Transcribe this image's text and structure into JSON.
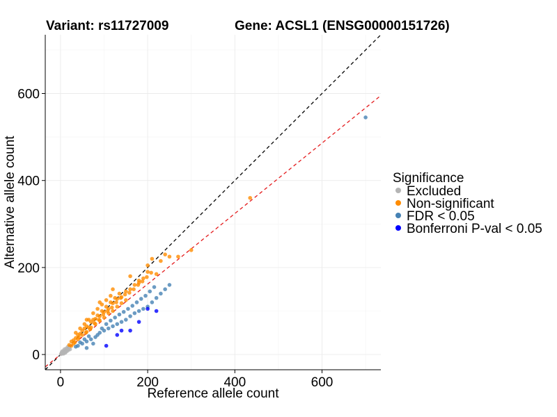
{
  "chart_data": {
    "type": "scatter",
    "title_left": "Variant: rs11727009",
    "title_right": "Gene: ACSL1 (ENSG00000151726)",
    "xlabel": "Reference allele count",
    "ylabel": "Alternative allele count",
    "xlim": [
      -35,
      735
    ],
    "ylim": [
      -35,
      735
    ],
    "xticks": [
      0,
      200,
      400,
      600
    ],
    "yticks": [
      0,
      200,
      400,
      600
    ],
    "grid": true,
    "legend": {
      "title": "Significance",
      "placement": "right",
      "entries": [
        {
          "label": "Excluded",
          "color": "#b4b4b4"
        },
        {
          "label": "Non-significant",
          "color": "#ff8c00"
        },
        {
          "label": "FDR < 0.05",
          "color": "#4682b4"
        },
        {
          "label": "Bonferroni P-val < 0.05",
          "color": "#0000ff"
        }
      ]
    },
    "reference_lines": [
      {
        "name": "identity",
        "slope": 1.0,
        "intercept": 0,
        "color": "#000000",
        "dash": "dashed"
      },
      {
        "name": "fit",
        "slope": 0.81,
        "intercept": 0,
        "color": "#e41a1c",
        "dash": "dashed"
      }
    ],
    "series": [
      {
        "name": "Excluded",
        "color": "#b4b4b4",
        "points": [
          [
            2,
            3
          ],
          [
            4,
            2
          ],
          [
            6,
            5
          ],
          [
            8,
            4
          ],
          [
            10,
            9
          ],
          [
            12,
            6
          ],
          [
            14,
            10
          ],
          [
            5,
            8
          ],
          [
            9,
            12
          ],
          [
            3,
            6
          ],
          [
            16,
            12
          ],
          [
            18,
            10
          ],
          [
            7,
            2
          ],
          [
            11,
            4
          ],
          [
            13,
            14
          ],
          [
            20,
            15
          ],
          [
            15,
            8
          ],
          [
            22,
            12
          ],
          [
            17,
            18
          ],
          [
            1,
            1
          ]
        ]
      },
      {
        "name": "Non-significant",
        "color": "#ff8c00",
        "points": [
          [
            20,
            22
          ],
          [
            25,
            30
          ],
          [
            30,
            33
          ],
          [
            35,
            38
          ],
          [
            40,
            45
          ],
          [
            45,
            48
          ],
          [
            50,
            55
          ],
          [
            55,
            60
          ],
          [
            60,
            65
          ],
          [
            65,
            62
          ],
          [
            70,
            75
          ],
          [
            75,
            80
          ],
          [
            80,
            82
          ],
          [
            85,
            90
          ],
          [
            90,
            88
          ],
          [
            95,
            100
          ],
          [
            100,
            98
          ],
          [
            105,
            110
          ],
          [
            110,
            105
          ],
          [
            115,
            120
          ],
          [
            120,
            118
          ],
          [
            125,
            130
          ],
          [
            130,
            128
          ],
          [
            135,
            140
          ],
          [
            140,
            132
          ],
          [
            150,
            145
          ],
          [
            160,
            150
          ],
          [
            170,
            160
          ],
          [
            180,
            170
          ],
          [
            200,
            190
          ],
          [
            210,
            220
          ],
          [
            230,
            215
          ],
          [
            240,
            230
          ],
          [
            250,
            225
          ],
          [
            270,
            225
          ],
          [
            300,
            240
          ],
          [
            435,
            360
          ],
          [
            30,
            25
          ],
          [
            40,
            35
          ],
          [
            50,
            45
          ],
          [
            60,
            52
          ],
          [
            70,
            62
          ],
          [
            80,
            70
          ],
          [
            90,
            78
          ],
          [
            100,
            85
          ],
          [
            110,
            95
          ],
          [
            120,
            100
          ],
          [
            130,
            110
          ],
          [
            140,
            118
          ],
          [
            150,
            125
          ],
          [
            45,
            60
          ],
          [
            55,
            70
          ],
          [
            65,
            80
          ],
          [
            75,
            95
          ],
          [
            85,
            105
          ],
          [
            95,
            115
          ],
          [
            105,
            125
          ],
          [
            115,
            135
          ],
          [
            35,
            50
          ],
          [
            60,
            80
          ],
          [
            90,
            120
          ],
          [
            120,
            150
          ],
          [
            160,
            180
          ],
          [
            180,
            165
          ],
          [
            190,
            175
          ],
          [
            200,
            205
          ],
          [
            220,
            185
          ],
          [
            25,
            20
          ],
          [
            33,
            28
          ],
          [
            42,
            40
          ],
          [
            58,
            50
          ],
          [
            68,
            58
          ],
          [
            78,
            72
          ],
          [
            88,
            80
          ],
          [
            98,
            92
          ],
          [
            108,
            100
          ],
          [
            118,
            108
          ],
          [
            128,
            120
          ],
          [
            138,
            130
          ],
          [
            148,
            138
          ],
          [
            158,
            142
          ],
          [
            168,
            150
          ],
          [
            178,
            160
          ],
          [
            188,
            168
          ],
          [
            198,
            178
          ],
          [
            208,
            188
          ]
        ]
      },
      {
        "name": "FDR < 0.05",
        "color": "#4682b4",
        "points": [
          [
            40,
            20
          ],
          [
            50,
            25
          ],
          [
            60,
            30
          ],
          [
            70,
            35
          ],
          [
            80,
            40
          ],
          [
            90,
            50
          ],
          [
            100,
            55
          ],
          [
            110,
            60
          ],
          [
            120,
            65
          ],
          [
            130,
            70
          ],
          [
            140,
            75
          ],
          [
            150,
            80
          ],
          [
            160,
            88
          ],
          [
            170,
            95
          ],
          [
            180,
            100
          ],
          [
            190,
            105
          ],
          [
            200,
            110
          ],
          [
            210,
            120
          ],
          [
            220,
            130
          ],
          [
            230,
            140
          ],
          [
            240,
            150
          ],
          [
            250,
            160
          ],
          [
            60,
            15
          ],
          [
            75,
            25
          ],
          [
            85,
            45
          ],
          [
            95,
            60
          ],
          [
            105,
            70
          ],
          [
            115,
            78
          ],
          [
            125,
            85
          ],
          [
            135,
            92
          ],
          [
            145,
            98
          ],
          [
            155,
            105
          ],
          [
            165,
            112
          ],
          [
            175,
            120
          ],
          [
            185,
            128
          ],
          [
            195,
            135
          ],
          [
            205,
            145
          ],
          [
            215,
            155
          ],
          [
            55,
            35
          ],
          [
            65,
            42
          ],
          [
            45,
            28
          ],
          [
            35,
            18
          ],
          [
            700,
            545
          ]
        ]
      },
      {
        "name": "Bonferroni P-val < 0.05",
        "color": "#0000ff",
        "points": [
          [
            105,
            20
          ],
          [
            160,
            55
          ],
          [
            220,
            100
          ],
          [
            200,
            105
          ],
          [
            140,
            55
          ],
          [
            130,
            45
          ],
          [
            180,
            75
          ]
        ]
      }
    ]
  }
}
